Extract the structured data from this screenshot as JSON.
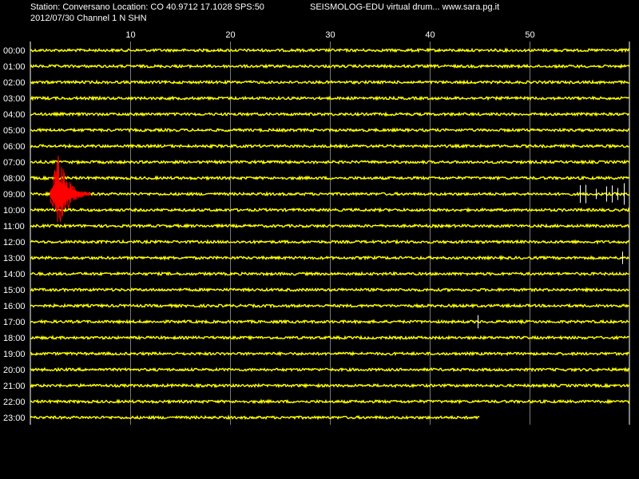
{
  "header": {
    "station_line": "Station: Conversano Location: CO 40.9712 17.1028 SPS:50",
    "date_line": "2012/07/30  Channel 1 N SHN",
    "brand": "SEISMOLOG-EDU virtual drum... www.sara.pg.it"
  },
  "chart_data": {
    "type": "line",
    "title": "",
    "xlabel": "",
    "ylabel": "",
    "x_unit_note": "",
    "x_ticks": [
      10,
      20,
      30,
      40,
      50
    ],
    "xlim": [
      0,
      60
    ],
    "row_labels": [
      "00:00",
      "01:00",
      "02:00",
      "03:00",
      "04:00",
      "05:00",
      "06:00",
      "07:00",
      "08:00",
      "09:00",
      "10:00",
      "11:00",
      "12:00",
      "13:00",
      "14:00",
      "15:00",
      "16:00",
      "17:00",
      "18:00",
      "19:00",
      "20:00",
      "21:00",
      "22:00",
      "23:00"
    ],
    "last_row_end_minute": 45,
    "grid": true,
    "colors": {
      "background": "#000000",
      "trace": "#ffff00",
      "event": "#ff0000",
      "spike": "#ffffff",
      "grid": "#ffffff"
    },
    "events": [
      {
        "row": "09:00",
        "start_minute": 2.0,
        "end_minute": 6.0,
        "color": "#ff0000"
      }
    ],
    "spikes": [
      {
        "row": "09:00",
        "minute": 55.0
      },
      {
        "row": "09:00",
        "minute": 55.6
      },
      {
        "row": "09:00",
        "minute": 56.6
      },
      {
        "row": "09:00",
        "minute": 57.7
      },
      {
        "row": "09:00",
        "minute": 58.2
      },
      {
        "row": "09:00",
        "minute": 58.8
      },
      {
        "row": "09:00",
        "minute": 59.4
      },
      {
        "row": "13:00",
        "minute": 59.3
      },
      {
        "row": "17:00",
        "minute": 44.8
      }
    ]
  }
}
